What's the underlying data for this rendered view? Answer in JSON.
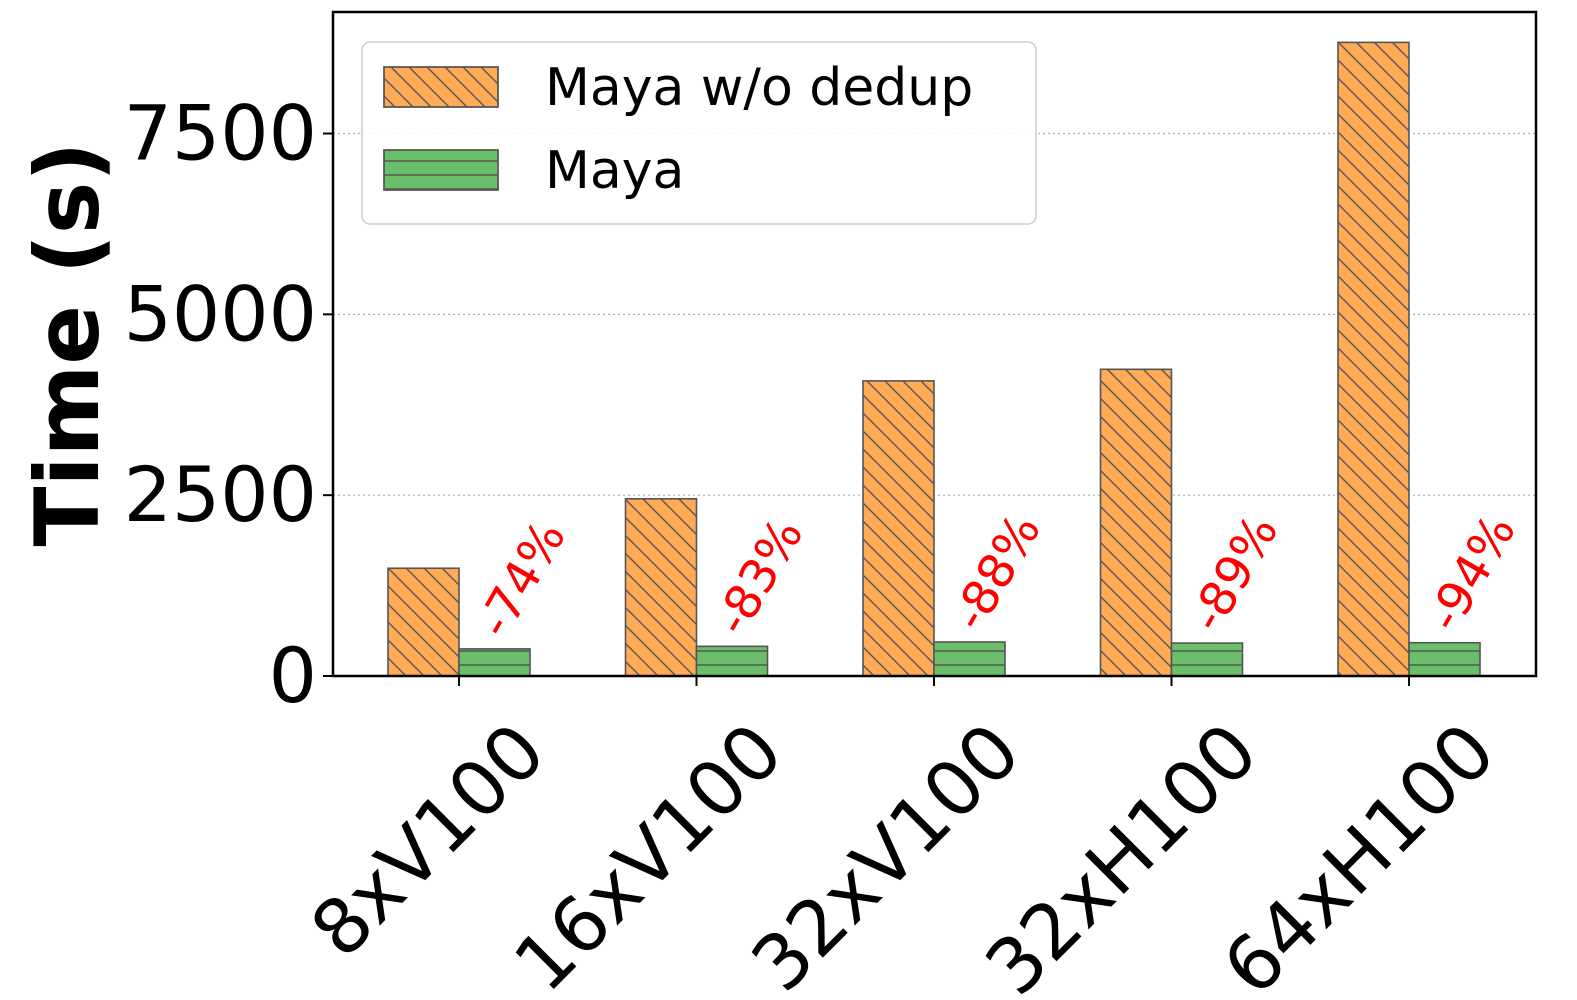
{
  "chart_data": {
    "type": "bar",
    "title": "",
    "xlabel": "",
    "ylabel": "Time (s)",
    "categories": [
      "8xV100",
      "16xV100",
      "32xV100",
      "32xH100",
      "64xH100"
    ],
    "series": [
      {
        "name": "Maya w/o dedup",
        "values": [
          1490,
          2450,
          4080,
          4240,
          8760
        ],
        "color": "#ffaa55",
        "hatch": "diagonal"
      },
      {
        "name": "Maya",
        "values": [
          375,
          410,
          470,
          455,
          460
        ],
        "color": "#6abf6a",
        "hatch": "horizontal"
      }
    ],
    "annotations": [
      "-74%",
      "-83%",
      "-88%",
      "-89%",
      "-94%"
    ],
    "annotation_color": "#ff0000",
    "ylim": [
      0,
      9180
    ],
    "yticks": [
      0,
      2500,
      5000,
      7500
    ],
    "grid": "y-dotted",
    "legend_position": "top-left"
  }
}
